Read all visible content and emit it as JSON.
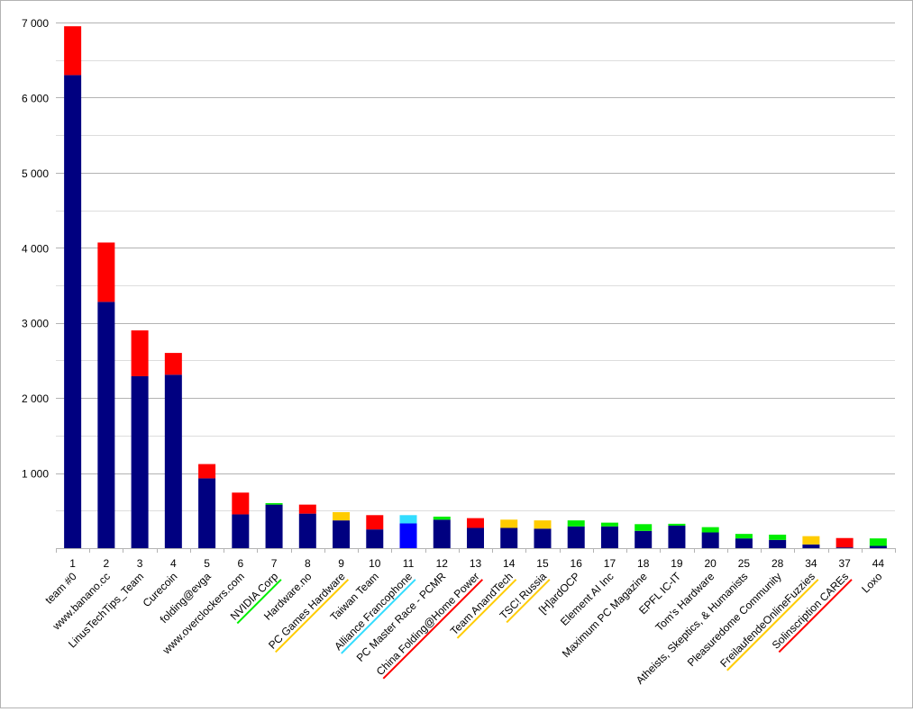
{
  "chart_data": {
    "type": "bar",
    "stacked": true,
    "ylim": [
      0,
      7000
    ],
    "yticks": [
      0,
      1000,
      2000,
      3000,
      4000,
      5000,
      6000,
      7000
    ],
    "ytick_labels": [
      "",
      "1 000",
      "2 000",
      "3 000",
      "4 000",
      "5 000",
      "6 000",
      "7 000"
    ],
    "grid": true,
    "legend": "none",
    "colors": {
      "navy": "#000080",
      "blue": "#0000ff",
      "red": "#ff0000",
      "green": "#00ee00",
      "gold": "#ffcc00",
      "cyan": "#33ddff"
    },
    "categories": [
      {
        "rank": "1",
        "name": "team #0",
        "base": 6300,
        "base_color": "navy",
        "top": 650,
        "top_color": "red",
        "underline": null
      },
      {
        "rank": "2",
        "name": "www.banano.cc",
        "base": 3280,
        "base_color": "navy",
        "top": 790,
        "top_color": "red",
        "underline": null
      },
      {
        "rank": "3",
        "name": "LinusTechTips_Team",
        "base": 2290,
        "base_color": "navy",
        "top": 610,
        "top_color": "red",
        "underline": null
      },
      {
        "rank": "4",
        "name": "Curecoin",
        "base": 2310,
        "base_color": "navy",
        "top": 290,
        "top_color": "red",
        "underline": null
      },
      {
        "rank": "5",
        "name": "folding@evga",
        "base": 930,
        "base_color": "navy",
        "top": 190,
        "top_color": "red",
        "underline": null
      },
      {
        "rank": "6",
        "name": "www.overclockers.com",
        "base": 450,
        "base_color": "navy",
        "top": 290,
        "top_color": "red",
        "underline": null
      },
      {
        "rank": "7",
        "name": "NVIDIA Corp",
        "base": 580,
        "base_color": "navy",
        "top": 20,
        "top_color": "green",
        "underline": "green"
      },
      {
        "rank": "8",
        "name": "Hardware.no",
        "base": 460,
        "base_color": "navy",
        "top": 120,
        "top_color": "red",
        "underline": null
      },
      {
        "rank": "9",
        "name": "PC Games Hardware",
        "base": 370,
        "base_color": "navy",
        "top": 110,
        "top_color": "gold",
        "underline": "gold"
      },
      {
        "rank": "10",
        "name": "Taiwan Team",
        "base": 250,
        "base_color": "navy",
        "top": 190,
        "top_color": "red",
        "underline": null
      },
      {
        "rank": "11",
        "name": "Alliance Francophone",
        "base": 330,
        "base_color": "blue",
        "top": 110,
        "top_color": "cyan",
        "underline": "cyan"
      },
      {
        "rank": "12",
        "name": "PC Master Race - PCMR",
        "base": 380,
        "base_color": "navy",
        "top": 40,
        "top_color": "green",
        "underline": null
      },
      {
        "rank": "13",
        "name": "China Folding@Home Power",
        "base": 270,
        "base_color": "navy",
        "top": 130,
        "top_color": "red",
        "underline": "red"
      },
      {
        "rank": "14",
        "name": "Team AnandTech",
        "base": 270,
        "base_color": "navy",
        "top": 110,
        "top_color": "gold",
        "underline": "gold"
      },
      {
        "rank": "15",
        "name": "TSC! Russia",
        "base": 260,
        "base_color": "navy",
        "top": 110,
        "top_color": "gold",
        "underline": "gold"
      },
      {
        "rank": "16",
        "name": "[H]ardOCP",
        "base": 290,
        "base_color": "navy",
        "top": 80,
        "top_color": "green",
        "underline": null
      },
      {
        "rank": "17",
        "name": "Element AI Inc",
        "base": 290,
        "base_color": "navy",
        "top": 50,
        "top_color": "green",
        "underline": null
      },
      {
        "rank": "18",
        "name": "Maximum PC Magazine",
        "base": 230,
        "base_color": "navy",
        "top": 90,
        "top_color": "green",
        "underline": null
      },
      {
        "rank": "19",
        "name": "EPFL IC-IT",
        "base": 300,
        "base_color": "navy",
        "top": 25,
        "top_color": "green",
        "underline": null
      },
      {
        "rank": "20",
        "name": "Tom's Hardware",
        "base": 210,
        "base_color": "navy",
        "top": 70,
        "top_color": "green",
        "underline": null
      },
      {
        "rank": "25",
        "name": "Atheists, Skeptics, & Humanists",
        "base": 130,
        "base_color": "navy",
        "top": 60,
        "top_color": "green",
        "underline": null
      },
      {
        "rank": "28",
        "name": "Pleasuredome Community",
        "base": 110,
        "base_color": "navy",
        "top": 70,
        "top_color": "green",
        "underline": null
      },
      {
        "rank": "34",
        "name": "FreilaufendeOnlineFuzzies",
        "base": 50,
        "base_color": "navy",
        "top": 110,
        "top_color": "gold",
        "underline": "gold"
      },
      {
        "rank": "37",
        "name": "Solinscription CAREs",
        "base": 10,
        "base_color": "navy",
        "top": 125,
        "top_color": "red",
        "underline": "red"
      },
      {
        "rank": "44",
        "name": "Loxo",
        "base": 30,
        "base_color": "navy",
        "top": 100,
        "top_color": "green",
        "underline": null
      }
    ]
  }
}
